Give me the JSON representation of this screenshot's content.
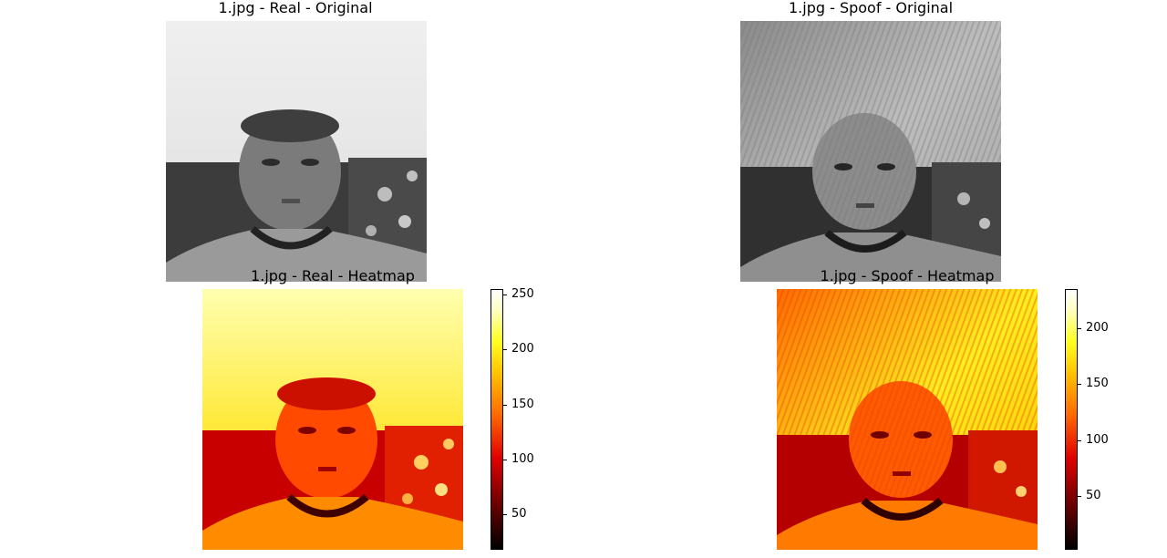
{
  "colors": {
    "title": "#000000",
    "background": "#ffffff"
  },
  "chart_data": [
    {
      "type": "image",
      "title": "1.jpg - Real - Original",
      "colormap": "gray"
    },
    {
      "type": "image",
      "title": "1.jpg - Spoof - Original",
      "colormap": "gray"
    },
    {
      "type": "heatmap",
      "title": "1.jpg - Real - Heatmap",
      "colormap": "hot",
      "colorbar": {
        "ticks": [
          50,
          100,
          150,
          200,
          250
        ],
        "range": [
          18,
          255
        ]
      }
    },
    {
      "type": "heatmap",
      "title": "1.jpg - Spoof - Heatmap",
      "colormap": "hot",
      "colorbar": {
        "ticks": [
          50,
          100,
          150,
          200
        ],
        "range": [
          2,
          235
        ]
      }
    }
  ]
}
